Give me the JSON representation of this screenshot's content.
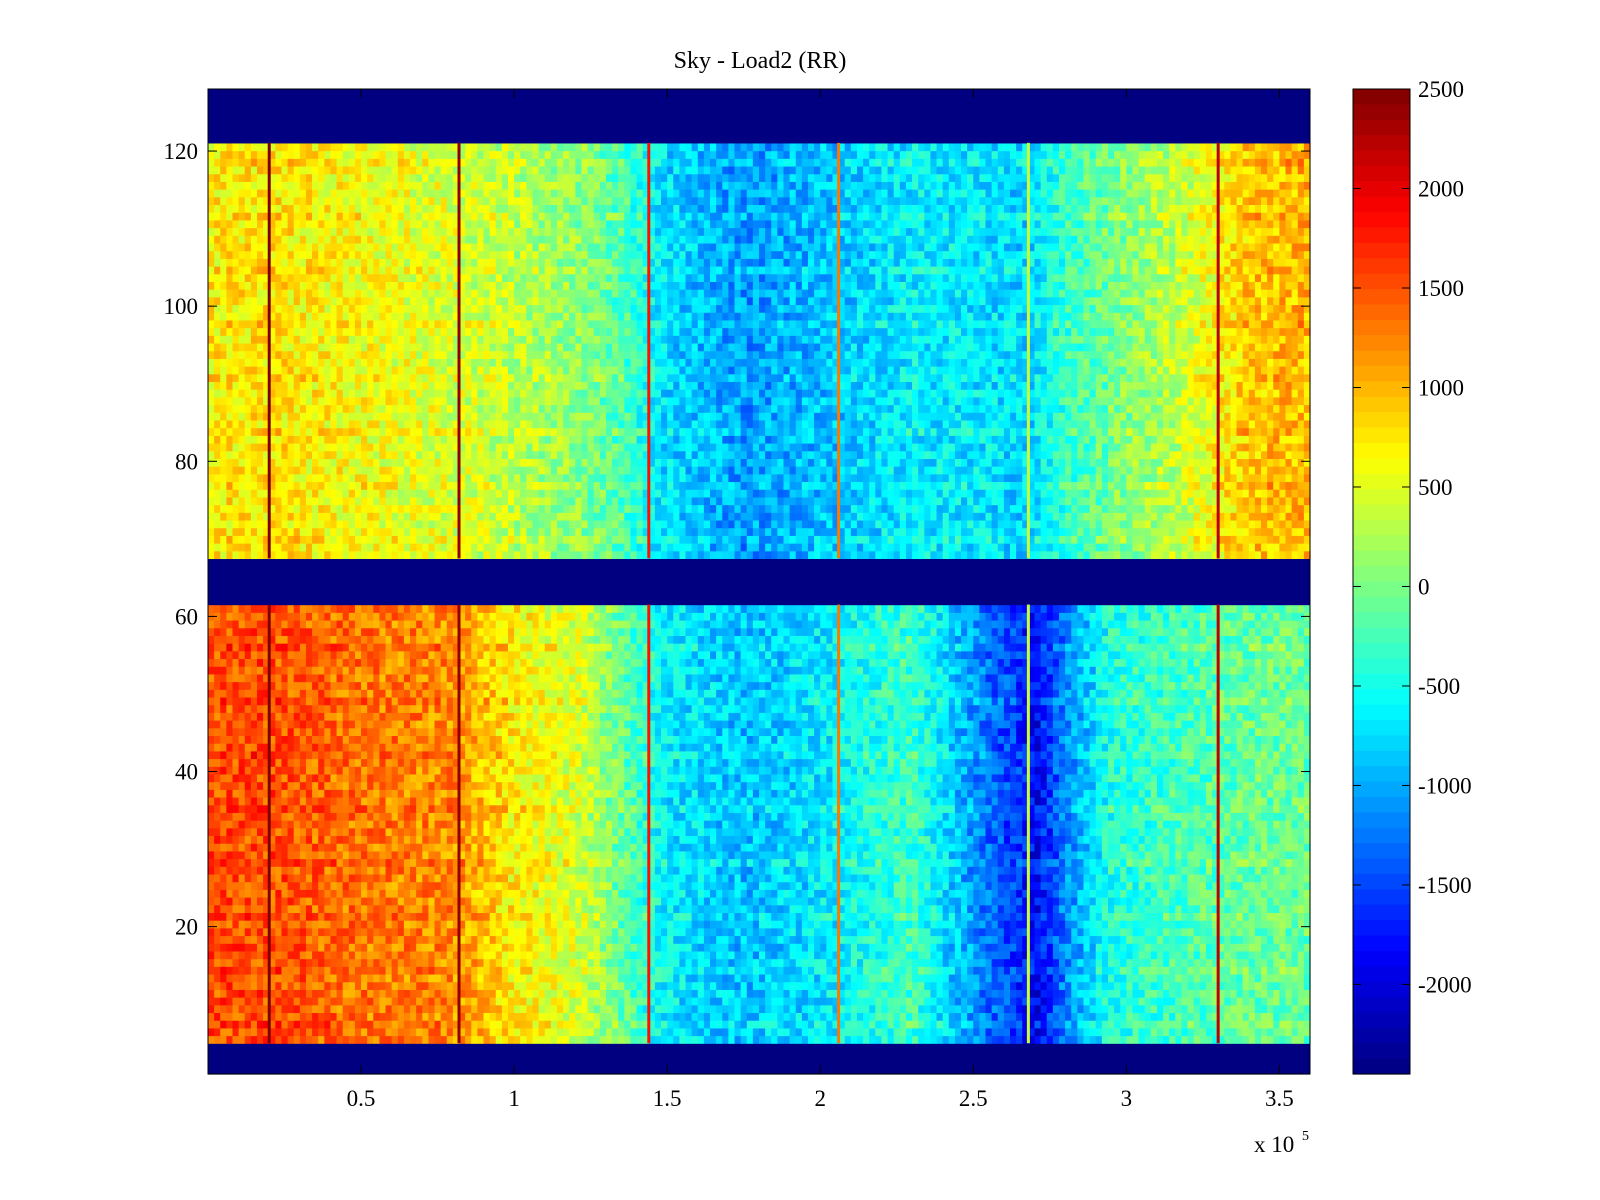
{
  "chart_data": {
    "type": "heatmap",
    "title": "Sky - Load2 (RR)",
    "xlabel": "",
    "ylabel": "",
    "x_multiplier_base": "x 10",
    "x_multiplier_exponent": "5",
    "xlim": [
      0,
      360000
    ],
    "ylim": [
      1,
      128
    ],
    "x_ticks": [
      {
        "value": 50000,
        "label": "0.5"
      },
      {
        "value": 100000,
        "label": "1"
      },
      {
        "value": 150000,
        "label": "1.5"
      },
      {
        "value": 200000,
        "label": "2"
      },
      {
        "value": 250000,
        "label": "2.5"
      },
      {
        "value": 300000,
        "label": "3"
      },
      {
        "value": 350000,
        "label": "3.5"
      }
    ],
    "y_ticks": [
      {
        "value": 20,
        "label": "20"
      },
      {
        "value": 40,
        "label": "40"
      },
      {
        "value": 60,
        "label": "60"
      },
      {
        "value": 80,
        "label": "80"
      },
      {
        "value": 100,
        "label": "100"
      },
      {
        "value": 120,
        "label": "120"
      }
    ],
    "colorbar": {
      "colormap": "jet",
      "clim": [
        -2450,
        2500
      ],
      "ticks": [
        {
          "value": 2500,
          "label": "2500"
        },
        {
          "value": 2000,
          "label": "2000"
        },
        {
          "value": 1500,
          "label": "1500"
        },
        {
          "value": 1000,
          "label": "1000"
        },
        {
          "value": 500,
          "label": "500"
        },
        {
          "value": 0,
          "label": "0"
        },
        {
          "value": -500,
          "label": "-500"
        },
        {
          "value": -1000,
          "label": "-1000"
        },
        {
          "value": -1500,
          "label": "-1500"
        },
        {
          "value": -2000,
          "label": "-2000"
        }
      ]
    },
    "masked_row_bands": [
      [
        1,
        4
      ],
      [
        62,
        68
      ],
      [
        122,
        128
      ]
    ],
    "masked_value": -2450,
    "profile_points": [
      0,
      20000,
      50000,
      80000,
      100000,
      120000,
      135000,
      150000,
      175000,
      200000,
      230000,
      255000,
      265000,
      270000,
      280000,
      295000,
      320000,
      340000,
      360000
    ],
    "upper_band": {
      "rows": [
        68,
        121
      ],
      "column_profile": [
        700,
        750,
        600,
        450,
        300,
        100,
        -200,
        -750,
        -1100,
        -900,
        -650,
        -700,
        -800,
        -700,
        -350,
        -50,
        400,
        900,
        1000
      ]
    },
    "lower_band": {
      "rows": [
        5,
        61
      ],
      "column_profile": [
        1500,
        1500,
        1300,
        1200,
        700,
        450,
        -100,
        -650,
        -900,
        -700,
        -300,
        -1300,
        -1600,
        -1900,
        -1200,
        -450,
        -250,
        -100,
        -100
      ]
    },
    "vertical_stripes": [
      {
        "x": 20000,
        "value": 2500
      },
      {
        "x": 82000,
        "value": 2400
      },
      {
        "x": 144000,
        "value": 1800
      },
      {
        "x": 206000,
        "value": 1300
      },
      {
        "x": 268000,
        "value": 400
      },
      {
        "x": 330000,
        "value": 2200
      }
    ],
    "grid": false,
    "legend": "none"
  }
}
